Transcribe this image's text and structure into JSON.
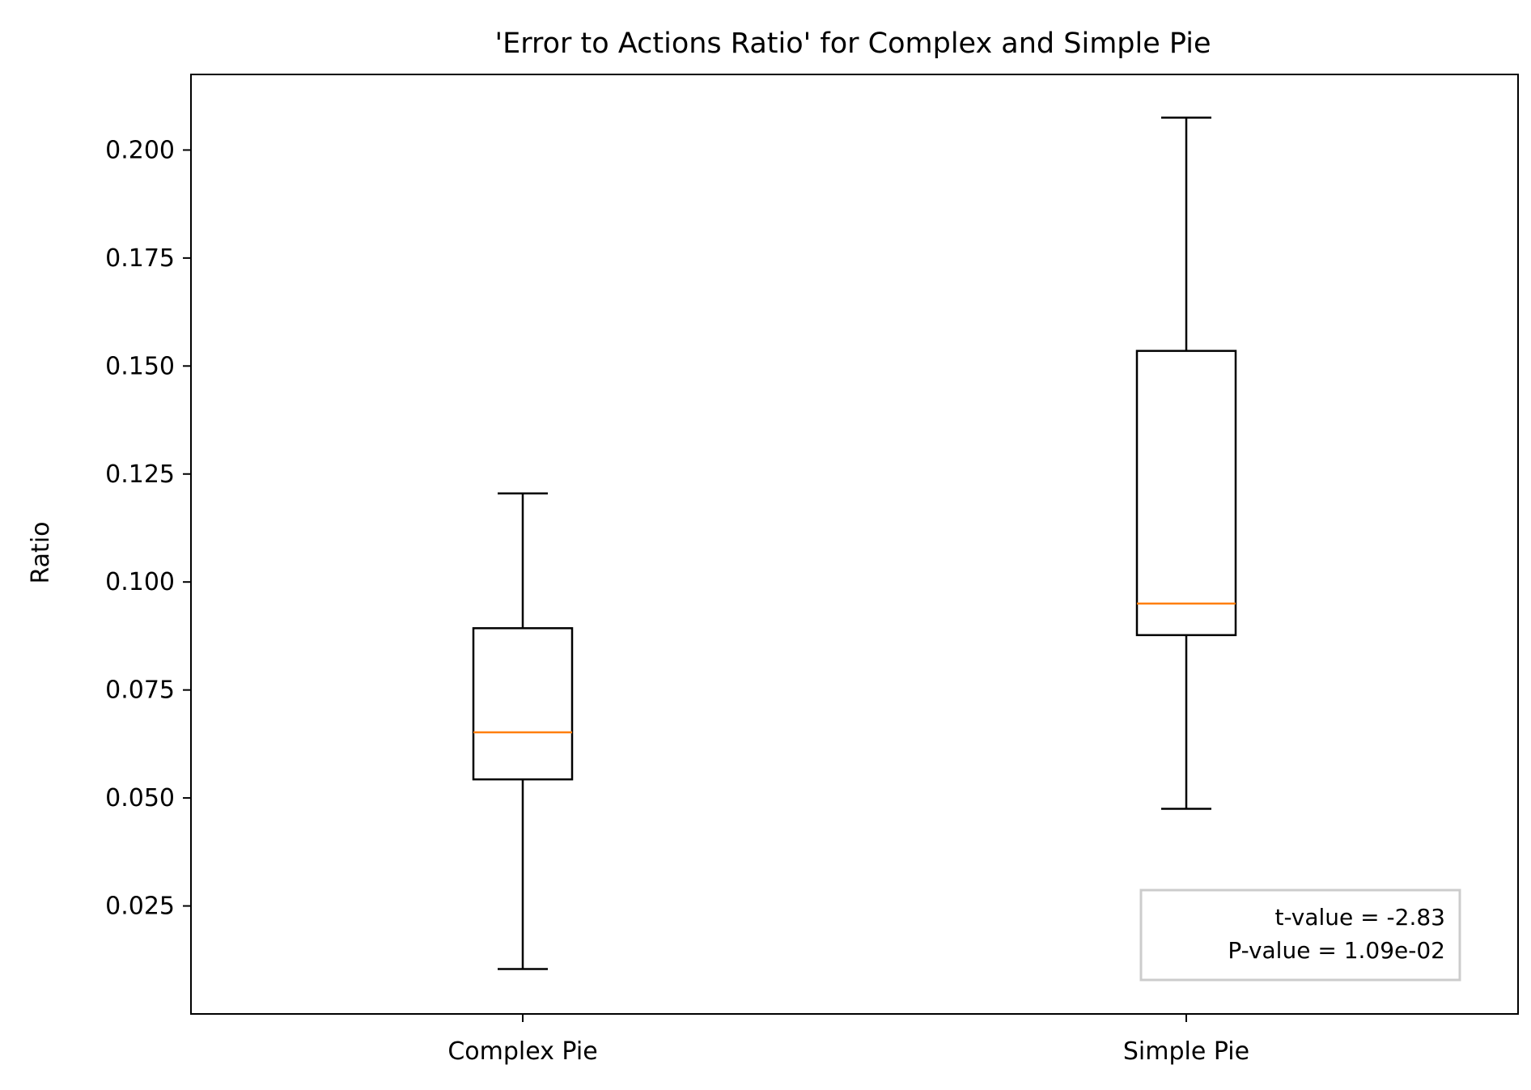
{
  "chart_data": {
    "type": "box",
    "title": "'Error to Actions Ratio' for Complex and Simple Pie",
    "xlabel": "",
    "ylabel": "Ratio",
    "ylim": [
      0.0,
      0.2175
    ],
    "yticks": [
      0.025,
      0.05,
      0.075,
      0.1,
      0.125,
      0.15,
      0.175,
      0.2
    ],
    "ytick_labels": [
      "0.025",
      "0.050",
      "0.075",
      "0.100",
      "0.125",
      "0.150",
      "0.175",
      "0.200"
    ],
    "categories": [
      "Complex Pie",
      "Simple Pie"
    ],
    "boxes": [
      {
        "category": "Complex Pie",
        "whisker_low": 0.0104,
        "q1": 0.0543,
        "median": 0.0652,
        "q3": 0.0893,
        "whisker_high": 0.1205
      },
      {
        "category": "Simple Pie",
        "whisker_low": 0.0475,
        "q1": 0.0877,
        "median": 0.095,
        "q3": 0.1535,
        "whisker_high": 0.2075
      }
    ],
    "annotation": {
      "lines": [
        "t-value = -2.83",
        "P-value = 1.09e-02"
      ],
      "position": "bottom-right"
    },
    "grid": false,
    "colors": {
      "box": "#000000",
      "median": "#ff7f0e",
      "annotation_border": "#cccccc"
    }
  }
}
